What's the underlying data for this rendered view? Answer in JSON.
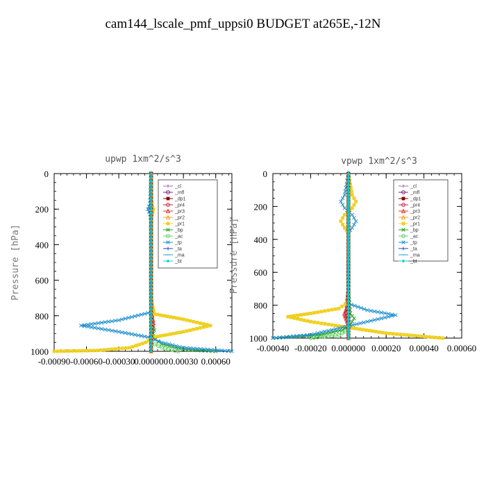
{
  "figure_title": "cam144_lscale_pmf_uppsi0  BUDGET at265E,-12N",
  "chart_data": [
    {
      "type": "line",
      "title": "upwp   1xm^2/s^3",
      "ylabel": "Pressure [hPa]",
      "ylim": [
        0,
        1000
      ],
      "yticks": [
        0,
        200,
        400,
        600,
        800,
        1000
      ],
      "ytick_labels": [
        "0",
        "200",
        "400",
        "600",
        "800",
        "1000"
      ],
      "xlim": [
        -0.0009,
        0.00075
      ],
      "xticks": [
        -0.0009,
        -0.0006,
        -0.0003,
        0.0,
        0.0003,
        0.0006
      ],
      "xtick_labels": [
        "-0.00090",
        "-0.00060",
        "-0.00030",
        "0.000000",
        "0.00030",
        "0.00060"
      ],
      "legend_position": "top-right",
      "series": [
        {
          "name": "_cl",
          "color": "#a06aa8",
          "marker": "plus",
          "x": [
            0,
            0,
            0,
            0,
            0,
            0,
            0,
            0,
            0,
            0,
            0
          ],
          "y": [
            0,
            100,
            200,
            300,
            400,
            500,
            600,
            700,
            800,
            900,
            1000
          ]
        },
        {
          "name": "_mfl",
          "color": "#7b1f8a",
          "marker": "circle",
          "x": [
            0,
            0,
            0,
            0,
            0,
            0,
            0,
            0,
            0,
            0,
            0
          ],
          "y": [
            0,
            100,
            200,
            300,
            400,
            500,
            600,
            700,
            800,
            900,
            1000
          ]
        },
        {
          "name": "_dp1",
          "color": "#8b0000",
          "marker": "square",
          "x": [
            0,
            0,
            0,
            0,
            0,
            0,
            0,
            0,
            0,
            0,
            0
          ],
          "y": [
            0,
            100,
            200,
            300,
            400,
            500,
            600,
            700,
            800,
            900,
            1000
          ]
        },
        {
          "name": "_pr4",
          "color": "#d0204a",
          "marker": "circle",
          "x": [
            0,
            0,
            0,
            1e-05,
            2e-05,
            1e-05,
            0,
            0
          ],
          "y": [
            0,
            200,
            700,
            820,
            850,
            880,
            920,
            1000
          ]
        },
        {
          "name": "_pr3",
          "color": "#e83020",
          "marker": "triangle",
          "x": [
            0,
            0,
            0,
            1e-05,
            2e-05,
            1e-05,
            0,
            0
          ],
          "y": [
            0,
            200,
            700,
            800,
            840,
            870,
            920,
            1000
          ]
        },
        {
          "name": "_pr2",
          "color": "#f0a020",
          "marker": "triangle",
          "x": [
            0,
            0,
            0,
            0,
            0
          ],
          "y": [
            0,
            300,
            600,
            900,
            1000
          ]
        },
        {
          "name": "_pr1",
          "color": "#f0d020",
          "marker": "square",
          "x": [
            0,
            5e-06,
            2e-05,
            1e-05,
            0,
            0,
            3e-05,
            0.0003,
            0.00055,
            0.0003,
            3e-05,
            -5e-05,
            -0.0002,
            -0.0005,
            -0.0009
          ],
          "y": [
            0,
            170,
            200,
            230,
            260,
            700,
            790,
            820,
            855,
            890,
            920,
            950,
            980,
            995,
            1000
          ]
        },
        {
          "name": "_bp",
          "color": "#20a020",
          "marker": "x",
          "x": [
            0,
            0,
            0,
            3e-05,
            1e-05,
            0.0001,
            0.0003,
            0.0006
          ],
          "y": [
            0,
            700,
            850,
            880,
            920,
            960,
            990,
            1000
          ]
        },
        {
          "name": "_ac",
          "color": "#60d060",
          "marker": "circle",
          "x": [
            0,
            0,
            0,
            0.0001,
            0.00025
          ],
          "y": [
            0,
            900,
            950,
            980,
            1000
          ]
        },
        {
          "name": "_tp",
          "color": "#2090d0",
          "marker": "x",
          "x": [
            0,
            -1e-05,
            -3e-05,
            -1e-05,
            0,
            0,
            -0.0003,
            -0.00065,
            -0.0003,
            -3e-05,
            0.0001,
            0.0003,
            0.00075
          ],
          "y": [
            0,
            170,
            200,
            230,
            260,
            780,
            825,
            855,
            890,
            920,
            950,
            980,
            1000
          ]
        },
        {
          "name": "_ta",
          "color": "#2040c0",
          "marker": "plus",
          "x": [
            0,
            0,
            0,
            0
          ],
          "y": [
            0,
            400,
            800,
            1000
          ]
        },
        {
          "name": "_ma",
          "color": "#20a0d0",
          "marker": "dash",
          "x": [
            0,
            0,
            0,
            0
          ],
          "y": [
            0,
            400,
            800,
            1000
          ]
        },
        {
          "name": "_bt",
          "color": "#00d0d0",
          "marker": "diamond",
          "x": [
            0,
            0,
            0,
            0
          ],
          "y": [
            0,
            400,
            800,
            1000
          ]
        }
      ]
    },
    {
      "type": "line",
      "title": "vpwp   1xm^2/s^3",
      "ylabel": "Pressure [hPa]",
      "ylim": [
        0,
        1000
      ],
      "yticks": [
        0,
        200,
        400,
        600,
        800,
        1000
      ],
      "ytick_labels": [
        "0",
        "200",
        "400",
        "600",
        "800",
        "1000"
      ],
      "xlim": [
        -0.0004,
        0.0006
      ],
      "xticks": [
        -0.0004,
        -0.0002,
        0.0,
        0.0002,
        0.0004,
        0.0006
      ],
      "xtick_labels": [
        "-0.00040",
        "-0.00020",
        "0.000000",
        "0.00020",
        "0.00040",
        "0.00060"
      ],
      "legend_position": "top-right",
      "series": [
        {
          "name": "_cl",
          "color": "#a06aa8",
          "marker": "plus",
          "x": [
            0,
            0,
            0,
            0,
            0,
            0,
            0,
            0,
            0,
            0,
            0
          ],
          "y": [
            0,
            100,
            200,
            300,
            400,
            500,
            600,
            700,
            800,
            900,
            1000
          ]
        },
        {
          "name": "_mfl",
          "color": "#7b1f8a",
          "marker": "circle",
          "x": [
            0,
            0,
            0,
            0,
            0,
            0,
            0,
            0,
            0,
            0,
            0
          ],
          "y": [
            0,
            100,
            200,
            300,
            400,
            500,
            600,
            700,
            800,
            900,
            1000
          ]
        },
        {
          "name": "_dp1",
          "color": "#8b0000",
          "marker": "square",
          "x": [
            0,
            0,
            0,
            0,
            0,
            0,
            0,
            0,
            0,
            0,
            0
          ],
          "y": [
            0,
            100,
            200,
            300,
            400,
            500,
            600,
            700,
            800,
            900,
            1000
          ]
        },
        {
          "name": "_pr4",
          "color": "#d0204a",
          "marker": "circle",
          "x": [
            0,
            0,
            -1e-05,
            -2e-05,
            -1e-05,
            0,
            0
          ],
          "y": [
            0,
            700,
            830,
            860,
            890,
            920,
            1000
          ]
        },
        {
          "name": "_pr3",
          "color": "#e83020",
          "marker": "triangle",
          "x": [
            0,
            0,
            -1e-05,
            -2e-05,
            -1e-05,
            0,
            0
          ],
          "y": [
            0,
            700,
            820,
            850,
            880,
            920,
            1000
          ]
        },
        {
          "name": "_pr2",
          "color": "#f0a020",
          "marker": "triangle",
          "x": [
            0,
            0,
            0,
            0,
            0
          ],
          "y": [
            0,
            300,
            600,
            900,
            1000
          ]
        },
        {
          "name": "_pr1",
          "color": "#f0d020",
          "marker": "square",
          "x": [
            0,
            2e-05,
            4e-05,
            2e-05,
            -2e-05,
            -4e-05,
            -2e-05,
            0,
            0,
            -5e-05,
            -0.0002,
            -0.00032,
            -0.0002,
            -3e-05,
            0.0002,
            0.0005
          ],
          "y": [
            0,
            130,
            170,
            210,
            250,
            290,
            330,
            360,
            780,
            820,
            850,
            870,
            900,
            930,
            970,
            1000
          ]
        },
        {
          "name": "_bp",
          "color": "#20a020",
          "marker": "x",
          "x": [
            0,
            0,
            1e-05,
            3e-05,
            1e-05,
            -3e-05,
            -0.00015,
            -0.0004
          ],
          "y": [
            0,
            700,
            850,
            880,
            920,
            950,
            980,
            1000
          ]
        },
        {
          "name": "_ac",
          "color": "#60d060",
          "marker": "circle",
          "x": [
            0,
            0,
            0,
            -5e-05,
            -0.0002
          ],
          "y": [
            0,
            900,
            950,
            980,
            1000
          ]
        },
        {
          "name": "_tp",
          "color": "#2090d0",
          "marker": "x",
          "x": [
            0,
            -2e-05,
            -4e-05,
            -2e-05,
            2e-05,
            4e-05,
            2e-05,
            0,
            0,
            0.0001,
            0.00025,
            0.0001,
            -5e-05,
            -0.0002,
            -0.0004
          ],
          "y": [
            0,
            130,
            170,
            210,
            250,
            290,
            330,
            360,
            790,
            830,
            860,
            900,
            940,
            980,
            1000
          ]
        },
        {
          "name": "_ta",
          "color": "#2040c0",
          "marker": "plus",
          "x": [
            0,
            0,
            0,
            0
          ],
          "y": [
            0,
            400,
            800,
            1000
          ]
        },
        {
          "name": "_ma",
          "color": "#20a0d0",
          "marker": "dash",
          "x": [
            0,
            0,
            0,
            0
          ],
          "y": [
            0,
            400,
            800,
            1000
          ]
        },
        {
          "name": "_bt",
          "color": "#00d0d0",
          "marker": "diamond",
          "x": [
            0,
            0,
            0,
            0
          ],
          "y": [
            0,
            400,
            800,
            1000
          ]
        }
      ]
    }
  ]
}
